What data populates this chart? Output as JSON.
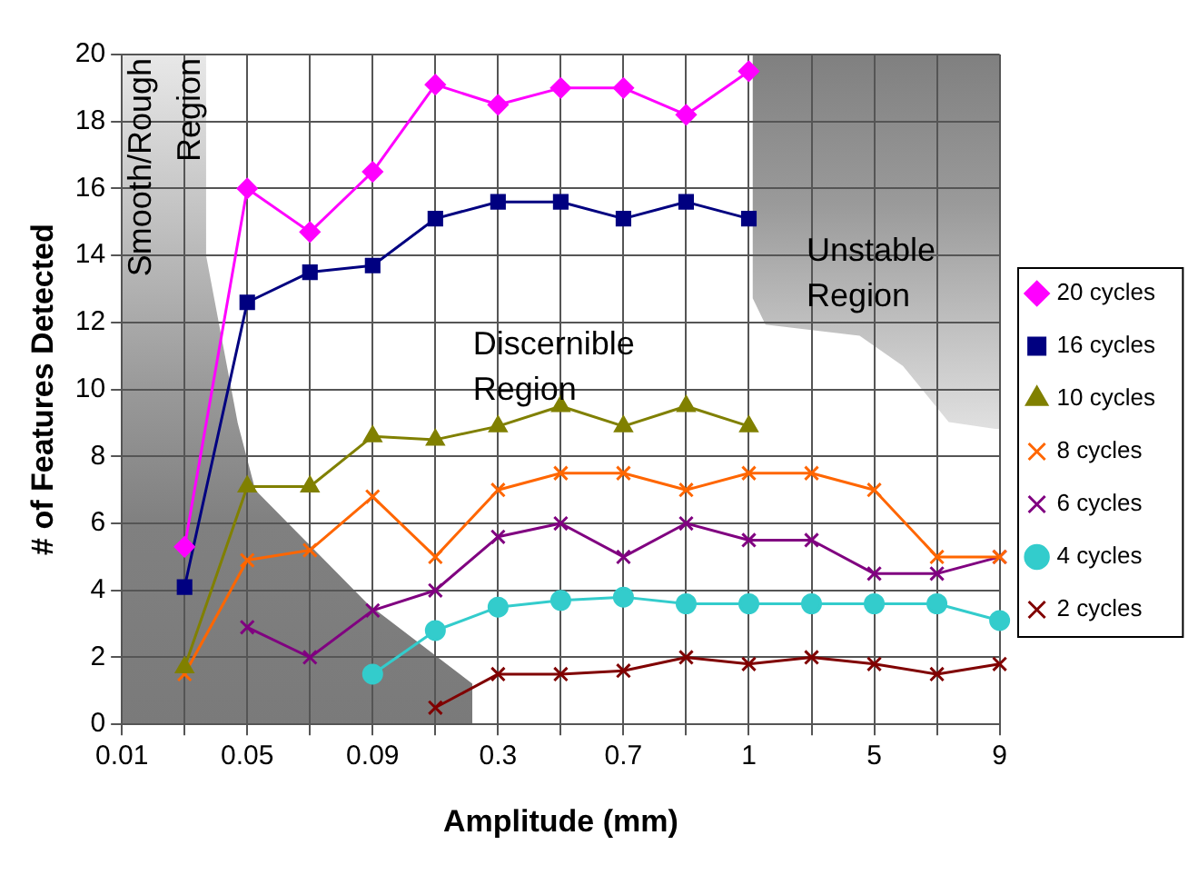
{
  "chart_data": {
    "type": "line",
    "xlabel": "Amplitude (mm)",
    "ylabel": "# of Features Detected",
    "categories": [
      "0.01",
      null,
      "0.05",
      null,
      "0.09",
      null,
      "0.3",
      null,
      "0.7",
      null,
      "1",
      null,
      "5",
      null,
      "9"
    ],
    "series": [
      {
        "name": "20 cycles",
        "color": "#ff00ff",
        "marker": "diamond",
        "values": [
          null,
          5.3,
          16,
          14.7,
          16.5,
          19.1,
          18.5,
          19,
          19,
          18.2,
          19.5,
          null,
          null,
          null,
          null
        ]
      },
      {
        "name": "16 cycles",
        "color": "#000080",
        "marker": "square",
        "values": [
          null,
          4.1,
          12.6,
          13.5,
          13.7,
          15.1,
          15.6,
          15.6,
          15.1,
          15.6,
          15.1,
          null,
          null,
          null,
          null
        ]
      },
      {
        "name": "10 cycles",
        "color": "#808000",
        "marker": "triangle",
        "values": [
          null,
          1.7,
          7.1,
          7.1,
          8.6,
          8.5,
          8.9,
          9.5,
          8.9,
          9.5,
          8.9,
          null,
          null,
          null,
          null
        ]
      },
      {
        "name": "8 cycles",
        "color": "#ff6600",
        "marker": "cross",
        "values": [
          null,
          1.5,
          4.9,
          5.2,
          6.8,
          5.0,
          7.0,
          7.5,
          7.5,
          7.0,
          7.5,
          7.5,
          7.0,
          5.0,
          5.0
        ]
      },
      {
        "name": "6 cycles",
        "color": "#800080",
        "marker": "cross",
        "values": [
          null,
          null,
          2.9,
          2.0,
          3.4,
          4.0,
          5.6,
          6.0,
          5.0,
          6.0,
          5.5,
          5.5,
          4.5,
          4.5,
          5.0
        ]
      },
      {
        "name": "4 cycles",
        "color": "#33cccc",
        "marker": "circle",
        "values": [
          null,
          null,
          null,
          null,
          1.5,
          2.8,
          3.5,
          3.7,
          3.8,
          3.6,
          3.6,
          3.6,
          3.6,
          3.6,
          3.1
        ]
      },
      {
        "name": "2 cycles",
        "color": "#800000",
        "marker": "cross",
        "values": [
          null,
          null,
          null,
          null,
          null,
          0.5,
          1.5,
          1.5,
          1.6,
          2.0,
          1.8,
          2.0,
          1.8,
          1.5,
          1.8
        ]
      }
    ],
    "ylim": [
      0,
      20
    ],
    "yticks": [
      0,
      2,
      4,
      6,
      8,
      10,
      12,
      14,
      16,
      18,
      20
    ],
    "grid": true,
    "legend": "right",
    "annotations": [
      "Smooth/Rough Region",
      "Discernible Region",
      "Unstable Region"
    ]
  }
}
